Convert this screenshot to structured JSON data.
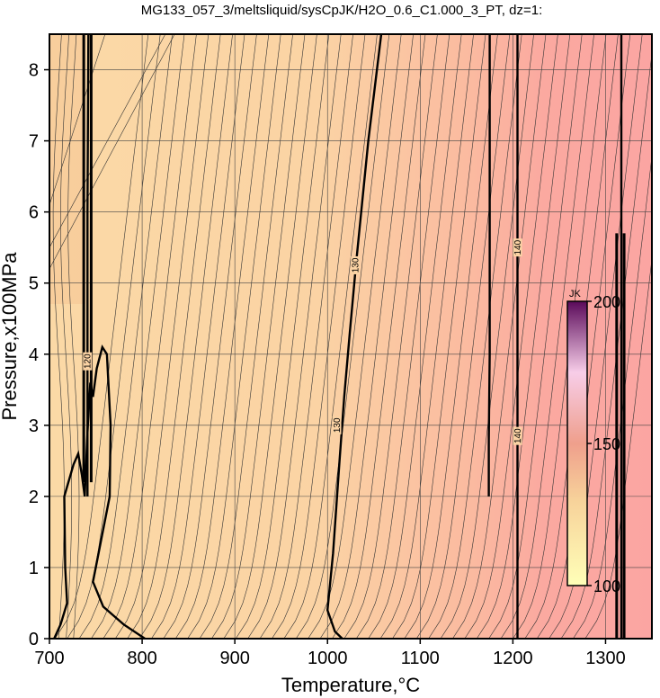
{
  "chart_data": {
    "type": "contour",
    "title": "MG133_057_3/meltsliquid/sysCpJK/H2O_0.6_C1.000_3_PT, dz=1:",
    "xlabel": "Temperature,°C",
    "ylabel": "Pressure,x100MPa",
    "xlim": [
      700,
      1350
    ],
    "ylim": [
      0,
      8.5
    ],
    "xticks": [
      "700",
      "800",
      "900",
      "1000",
      "1100",
      "1200",
      "1300"
    ],
    "yticks": [
      "0",
      "1",
      "2",
      "3",
      "4",
      "5",
      "6",
      "7",
      "8"
    ],
    "grid": true,
    "colorbar": {
      "label": "JK",
      "range": [
        100,
        200
      ],
      "ticks": [
        "100",
        "150",
        "200"
      ],
      "colors": [
        "#ffffb8",
        "#f7d29a",
        "#ef9f8c",
        "#f7cde8",
        "#5a0a5a"
      ]
    },
    "contour_labels": [
      {
        "text": "120",
        "x": 741,
        "y": 3.9
      },
      {
        "text": "130",
        "x": 1030,
        "y": 5.25
      },
      {
        "text": "130",
        "x": 1010,
        "y": 3.0
      },
      {
        "text": "140",
        "x": 1205,
        "y": 5.5
      },
      {
        "text": "140",
        "x": 1205,
        "y": 2.85
      }
    ],
    "bold_contours": [
      {
        "name": "c1",
        "points": [
          [
            705,
            0
          ],
          [
            712,
            0.2
          ],
          [
            719,
            0.5
          ],
          [
            717,
            1.0
          ],
          [
            716,
            2.0
          ],
          [
            726,
            2.45
          ],
          [
            731,
            2.6
          ],
          [
            735,
            2.3
          ],
          [
            738,
            2.0
          ],
          [
            741,
            2.9
          ],
          [
            744,
            3.6
          ],
          [
            747,
            3.4
          ],
          [
            751,
            3.8
          ],
          [
            757,
            4.1
          ],
          [
            762,
            4.0
          ],
          [
            766,
            3.0
          ],
          [
            765,
            2.0
          ],
          [
            756,
            1.4
          ],
          [
            747,
            0.8
          ],
          [
            758,
            0.45
          ],
          [
            780,
            0.2
          ],
          [
            803,
            0
          ]
        ]
      },
      {
        "name": "c2",
        "points": [
          [
            742,
            8.5
          ],
          [
            741,
            6.0
          ],
          [
            741,
            4.0
          ],
          [
            741,
            2.0
          ]
        ]
      },
      {
        "name": "c3",
        "points": [
          [
            1016,
            0
          ],
          [
            1008,
            0.1
          ],
          [
            1000,
            0.4
          ],
          [
            1006,
            1.2
          ],
          [
            1013,
            2.5
          ],
          [
            1018,
            3.4
          ],
          [
            1024,
            4.3
          ],
          [
            1031,
            5.3
          ],
          [
            1044,
            7.0
          ],
          [
            1058,
            8.5
          ]
        ]
      },
      {
        "name": "c4",
        "points": [
          [
            1175,
            8.5
          ],
          [
            1175,
            6.0
          ],
          [
            1175,
            4.0
          ],
          [
            1174,
            2.8
          ],
          [
            1174,
            2.0
          ]
        ]
      },
      {
        "name": "c5",
        "points": [
          [
            1205,
            8.5
          ],
          [
            1205,
            4.0
          ],
          [
            1205,
            0
          ]
        ]
      },
      {
        "name": "c6",
        "points": [
          [
            1317,
            8.5
          ],
          [
            1317,
            4.0
          ],
          [
            1317,
            0
          ]
        ]
      }
    ]
  }
}
